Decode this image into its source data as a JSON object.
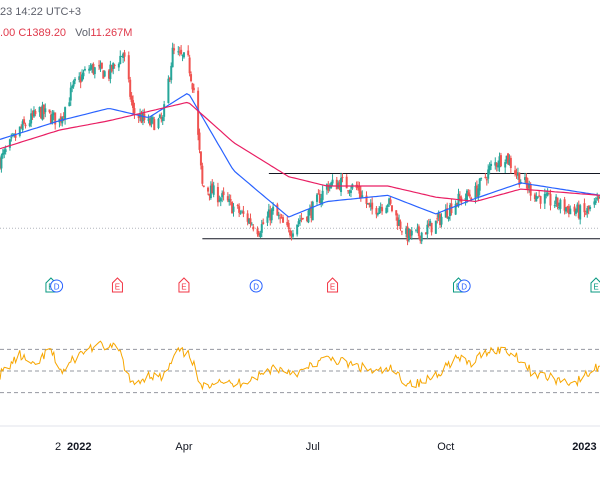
{
  "header": {
    "time_text": "23 14:22 UTC+3",
    "ohlc_text": ".00  C1389.20",
    "volume_label": "Vol",
    "volume_value": "11.267M"
  },
  "colors": {
    "up": "#26a69a",
    "down": "#ef5350",
    "ma_fast": "#2962ff",
    "ma_slow": "#e91e63",
    "oscillator": "#f7a600",
    "level_line": "#131722",
    "grid_dashed": "#9598a1",
    "event_earnings": "#f23645",
    "event_dividend": "#2962ff",
    "event_earnings_green": "#089981"
  },
  "chart_data": [
    {
      "type": "candlestick",
      "panel": "price",
      "x_range": [
        "2021-11-22",
        "2023-01-20"
      ],
      "x_ticks": [
        {
          "date": "2022-01-02",
          "label": "2"
        },
        {
          "date": "2022-01-17",
          "label": "2022"
        },
        {
          "date": "2022-04-01",
          "label": "Apr"
        },
        {
          "date": "2022-07-01",
          "label": "Jul"
        },
        {
          "date": "2022-10-03",
          "label": "Oct"
        },
        {
          "date": "2023-01-09",
          "label": "2023"
        }
      ],
      "close_anchors": [
        [
          "2021-11-22",
          1280
        ],
        [
          "2021-12-06",
          1330
        ],
        [
          "2021-12-20",
          1360
        ],
        [
          "2022-01-03",
          1345
        ],
        [
          "2022-01-13",
          1400
        ],
        [
          "2022-01-24",
          1430
        ],
        [
          "2022-02-07",
          1420
        ],
        [
          "2022-02-17",
          1455
        ],
        [
          "2022-02-24",
          1360
        ],
        [
          "2022-03-07",
          1340
        ],
        [
          "2022-03-17",
          1345
        ],
        [
          "2022-03-24",
          1455
        ],
        [
          "2022-04-04",
          1440
        ],
        [
          "2022-04-08",
          1395
        ],
        [
          "2022-04-14",
          1240
        ],
        [
          "2022-04-25",
          1225
        ],
        [
          "2022-05-06",
          1205
        ],
        [
          "2022-05-17",
          1185
        ],
        [
          "2022-05-24",
          1170
        ],
        [
          "2022-06-03",
          1200
        ],
        [
          "2022-06-14",
          1165
        ],
        [
          "2022-06-21",
          1185
        ],
        [
          "2022-06-30",
          1200
        ],
        [
          "2022-07-11",
          1240
        ],
        [
          "2022-07-21",
          1245
        ],
        [
          "2022-08-02",
          1235
        ],
        [
          "2022-08-11",
          1200
        ],
        [
          "2022-08-23",
          1215
        ],
        [
          "2022-09-05",
          1160
        ],
        [
          "2022-09-14",
          1162
        ],
        [
          "2022-09-26",
          1180
        ],
        [
          "2022-10-10",
          1215
        ],
        [
          "2022-10-24",
          1230
        ],
        [
          "2022-11-04",
          1270
        ],
        [
          "2022-11-14",
          1290
        ],
        [
          "2022-11-25",
          1250
        ],
        [
          "2022-12-06",
          1225
        ],
        [
          "2022-12-16",
          1215
        ],
        [
          "2022-12-27",
          1205
        ],
        [
          "2023-01-09",
          1195
        ],
        [
          "2023-01-20",
          1215
        ]
      ],
      "series": [
        {
          "name": "",
          "role": "fast-ma",
          "color": "#2962ff",
          "points": [
            [
              "2021-11-22",
              1315
            ],
            [
              "2022-01-03",
              1345
            ],
            [
              "2022-02-07",
              1365
            ],
            [
              "2022-03-07",
              1350
            ],
            [
              "2022-04-04",
              1390
            ],
            [
              "2022-05-06",
              1265
            ],
            [
              "2022-06-14",
              1190
            ],
            [
              "2022-07-11",
              1215
            ],
            [
              "2022-08-23",
              1225
            ],
            [
              "2022-09-26",
              1195
            ],
            [
              "2022-10-24",
              1220
            ],
            [
              "2022-11-25",
              1245
            ],
            [
              "2023-01-20",
              1225
            ]
          ]
        },
        {
          "name": "",
          "role": "slow-ma",
          "color": "#e91e63",
          "points": [
            [
              "2021-11-22",
              1300
            ],
            [
              "2022-01-03",
              1330
            ],
            [
              "2022-02-07",
              1345
            ],
            [
              "2022-03-07",
              1360
            ],
            [
              "2022-04-04",
              1375
            ],
            [
              "2022-05-06",
              1310
            ],
            [
              "2022-06-14",
              1255
            ],
            [
              "2022-07-11",
              1240
            ],
            [
              "2022-08-23",
              1240
            ],
            [
              "2022-09-26",
              1222
            ],
            [
              "2022-10-24",
              1215
            ],
            [
              "2022-11-25",
              1235
            ],
            [
              "2023-01-20",
              1225
            ]
          ]
        }
      ],
      "levels": [
        {
          "value": 1260,
          "from": "2022-05-31",
          "to": "2023-01-20"
        },
        {
          "value": 1155,
          "from": "2022-04-14",
          "to": "2023-01-20"
        }
      ],
      "events": [
        {
          "date": "2021-12-28",
          "kind": "E",
          "label": "E"
        },
        {
          "date": "2022-01-01",
          "kind": "D",
          "label": "D"
        },
        {
          "date": "2022-02-13",
          "kind": "E",
          "label": "E"
        },
        {
          "date": "2022-04-01",
          "kind": "E",
          "label": "E"
        },
        {
          "date": "2022-05-22",
          "kind": "D",
          "label": "D"
        },
        {
          "date": "2022-07-15",
          "kind": "E",
          "label": "E"
        },
        {
          "date": "2022-10-12",
          "kind": "E",
          "label": "E"
        },
        {
          "date": "2022-10-16",
          "kind": "D",
          "label": "D"
        },
        {
          "date": "2023-01-20",
          "kind": "E",
          "label": "E"
        }
      ],
      "y_range": [
        1145,
        1475
      ],
      "grid": false
    },
    {
      "type": "line",
      "panel": "oscillator",
      "series_color": "#f7a600",
      "anchors": [
        [
          "2021-11-22",
          45
        ],
        [
          "2021-12-06",
          72
        ],
        [
          "2021-12-16",
          55
        ],
        [
          "2021-12-27",
          80
        ],
        [
          "2022-01-05",
          48
        ],
        [
          "2022-01-14",
          68
        ],
        [
          "2022-01-24",
          82
        ],
        [
          "2022-02-03",
          85
        ],
        [
          "2022-02-14",
          80
        ],
        [
          "2022-02-23",
          30
        ],
        [
          "2022-03-07",
          45
        ],
        [
          "2022-03-17",
          40
        ],
        [
          "2022-03-28",
          78
        ],
        [
          "2022-04-06",
          70
        ],
        [
          "2022-04-13",
          25
        ],
        [
          "2022-04-25",
          40
        ],
        [
          "2022-05-05",
          30
        ],
        [
          "2022-05-16",
          38
        ],
        [
          "2022-05-26",
          45
        ],
        [
          "2022-06-03",
          55
        ],
        [
          "2022-06-13",
          50
        ],
        [
          "2022-06-23",
          48
        ],
        [
          "2022-07-04",
          62
        ],
        [
          "2022-07-14",
          68
        ],
        [
          "2022-07-25",
          60
        ],
        [
          "2022-08-04",
          55
        ],
        [
          "2022-08-15",
          48
        ],
        [
          "2022-08-25",
          52
        ],
        [
          "2022-09-05",
          35
        ],
        [
          "2022-09-15",
          32
        ],
        [
          "2022-09-26",
          45
        ],
        [
          "2022-10-10",
          68
        ],
        [
          "2022-10-21",
          60
        ],
        [
          "2022-11-01",
          78
        ],
        [
          "2022-11-11",
          80
        ],
        [
          "2022-11-22",
          72
        ],
        [
          "2022-12-02",
          50
        ],
        [
          "2022-12-12",
          42
        ],
        [
          "2022-12-22",
          38
        ],
        [
          "2023-01-03",
          34
        ],
        [
          "2023-01-13",
          48
        ],
        [
          "2023-01-20",
          58
        ]
      ],
      "guide_levels": [
        80,
        50,
        20
      ],
      "y_range": [
        0,
        100
      ]
    }
  ]
}
